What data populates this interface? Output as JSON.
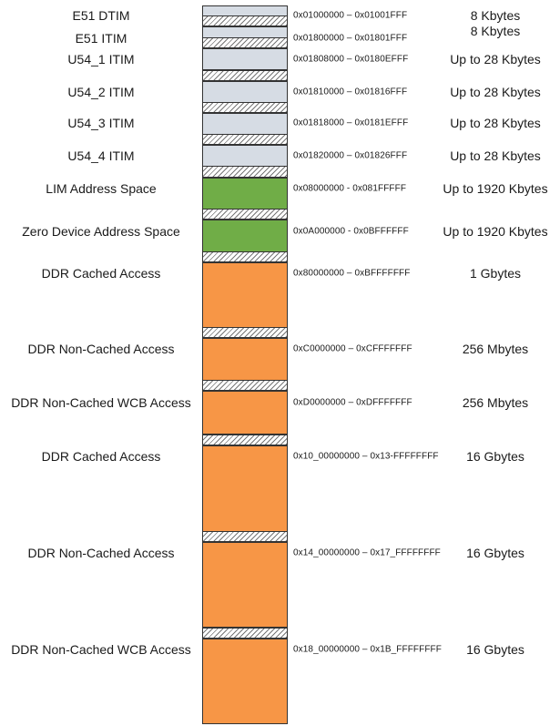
{
  "colors": {
    "tim": "#d6dce4",
    "lim": "#70ad47",
    "ddr": "#f79646",
    "reserved_hatch": "#777777",
    "border": "#333333"
  },
  "regions": [
    {
      "kind": "tim",
      "label": "E51 DTIM",
      "address": "0x01000000 – 0x01001FFF",
      "size": "8 Kbytes"
    },
    {
      "kind": "reserved"
    },
    {
      "kind": "tim",
      "label": "E51 ITIM",
      "address": "0x01800000 – 0x01801FFF",
      "size": "8 Kbytes"
    },
    {
      "kind": "reserved"
    },
    {
      "kind": "tim",
      "label": "U54_1 ITIM",
      "address": "0x01808000 – 0x0180EFFF",
      "size": "Up to 28 Kbytes"
    },
    {
      "kind": "reserved"
    },
    {
      "kind": "tim",
      "label": "U54_2 ITIM",
      "address": "0x01810000 – 0x01816FFF",
      "size": "Up to 28 Kbytes"
    },
    {
      "kind": "reserved"
    },
    {
      "kind": "tim",
      "label": "U54_3 ITIM",
      "address": "0x01818000 – 0x0181EFFF",
      "size": "Up to 28 Kbytes"
    },
    {
      "kind": "reserved"
    },
    {
      "kind": "tim",
      "label": "U54_4 ITIM",
      "address": "0x01820000 – 0x01826FFF",
      "size": "Up to 28 Kbytes"
    },
    {
      "kind": "reserved"
    },
    {
      "kind": "lim",
      "label": "LIM Address Space",
      "address": "0x08000000 - 0x081FFFFF",
      "size": "Up to 1920 Kbytes"
    },
    {
      "kind": "reserved"
    },
    {
      "kind": "lim",
      "label": "Zero Device Address Space",
      "address": "0x0A000000 - 0x0BFFFFFF",
      "size": "Up to 1920 Kbytes"
    },
    {
      "kind": "reserved"
    },
    {
      "kind": "ddr",
      "label": "DDR Cached Access",
      "address": "0x80000000 – 0xBFFFFFFF",
      "size": "1 Gbytes"
    },
    {
      "kind": "reserved"
    },
    {
      "kind": "ddr",
      "label": "DDR Non-Cached Access",
      "address": "0xC0000000 – 0xCFFFFFFF",
      "size": "256 Mbytes"
    },
    {
      "kind": "reserved"
    },
    {
      "kind": "ddr",
      "label": "DDR Non-Cached WCB Access",
      "address": "0xD0000000 – 0xDFFFFFFF",
      "size": "256 Mbytes"
    },
    {
      "kind": "reserved"
    },
    {
      "kind": "ddr",
      "label": "DDR Cached Access",
      "address": "0x10_00000000 – 0x13-FFFFFFFF",
      "size": "16 Gbytes"
    },
    {
      "kind": "reserved"
    },
    {
      "kind": "ddr",
      "label": "DDR Non-Cached Access",
      "address": "0x14_00000000 – 0x17_FFFFFFFF",
      "size": "16 Gbytes"
    },
    {
      "kind": "reserved"
    },
    {
      "kind": "ddr",
      "label": "DDR Non-Cached WCB Access",
      "address": "0x18_00000000 – 0x1B_FFFFFFFF",
      "size": "16 Gbytes"
    }
  ]
}
